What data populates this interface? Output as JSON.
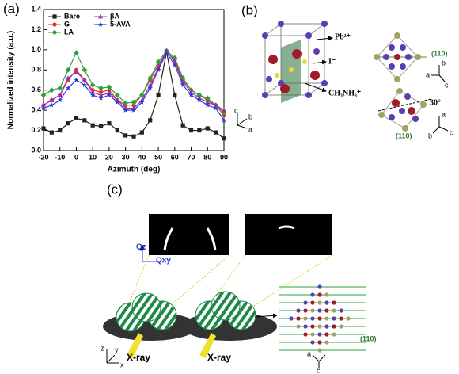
{
  "chart_data": {
    "type": "line",
    "panel_label": "(a)",
    "xlabel": "Azimuth (deg)",
    "ylabel": "Normalized intensity (a.u.)",
    "x": [
      -20,
      -15,
      -10,
      -5,
      0,
      5,
      10,
      15,
      20,
      25,
      30,
      35,
      40,
      45,
      50,
      55,
      60,
      65,
      70,
      75,
      80,
      85,
      90
    ],
    "xlim": [
      -20,
      90
    ],
    "xticks": [
      -20,
      -10,
      0,
      10,
      20,
      30,
      40,
      50,
      60,
      70,
      80,
      90
    ],
    "ylim": [
      0,
      1.4
    ],
    "yticks": [
      {
        "value": 0,
        "label": "0.0"
      },
      0.2,
      0.4,
      0.6,
      0.8,
      {
        "value": 1,
        "label": "1.0"
      },
      1.2,
      1.4
    ],
    "legend": "upper left",
    "series": [
      {
        "name": "Bare",
        "color": "#222222",
        "marker": "square",
        "values": [
          0.22,
          0.18,
          0.2,
          0.27,
          0.32,
          0.3,
          0.25,
          0.24,
          0.27,
          0.2,
          0.15,
          0.14,
          0.18,
          0.3,
          0.55,
          0.98,
          0.55,
          0.25,
          0.2,
          0.2,
          0.22,
          0.18,
          0.12
        ]
      },
      {
        "name": "G",
        "color": "#e8312f",
        "marker": "circle",
        "values": [
          0.45,
          0.5,
          0.55,
          0.7,
          0.8,
          0.7,
          0.6,
          0.58,
          0.6,
          0.5,
          0.45,
          0.45,
          0.55,
          0.7,
          0.85,
          0.98,
          0.9,
          0.7,
          0.6,
          0.55,
          0.5,
          0.45,
          0.35
        ]
      },
      {
        "name": "LA",
        "color": "#2aa33a",
        "marker": "diamond",
        "values": [
          0.55,
          0.6,
          0.62,
          0.8,
          0.97,
          0.8,
          0.65,
          0.62,
          0.63,
          0.55,
          0.47,
          0.48,
          0.55,
          0.72,
          0.88,
          0.99,
          0.92,
          0.72,
          0.6,
          0.55,
          0.52,
          0.45,
          0.38
        ]
      },
      {
        "name": "βA",
        "color": "#9b2fa8",
        "marker": "triangle",
        "values": [
          0.45,
          0.5,
          0.55,
          0.72,
          0.78,
          0.7,
          0.58,
          0.55,
          0.57,
          0.5,
          0.42,
          0.42,
          0.5,
          0.65,
          0.82,
          0.99,
          0.88,
          0.68,
          0.58,
          0.52,
          0.48,
          0.45,
          0.4
        ]
      },
      {
        "name": "5-AVA",
        "color": "#2a3bd6",
        "marker": "star",
        "values": [
          0.42,
          0.45,
          0.5,
          0.62,
          0.7,
          0.65,
          0.55,
          0.52,
          0.55,
          0.48,
          0.4,
          0.4,
          0.48,
          0.62,
          0.8,
          0.97,
          0.85,
          0.65,
          0.55,
          0.5,
          0.45,
          0.42,
          0.3
        ]
      }
    ]
  },
  "panel_b": {
    "label": "(b)",
    "ion_pb": "Pb²⁺",
    "ion_i": "I⁻",
    "ion_ma": "CH₃NH₃⁺",
    "plane_top": "(110)",
    "plane_bottom": "(110)",
    "angle": "30°",
    "axes_cube": [
      "c",
      "b",
      "a"
    ],
    "axes_top": [
      "b",
      "a",
      "c"
    ],
    "axes_bottom": [
      "a",
      "c",
      "b"
    ]
  },
  "panel_c": {
    "label": "(c)",
    "qz": "Qz",
    "qxy": "Qxy",
    "xray_left": "X-ray",
    "xray_right": "X-ray",
    "axes": [
      "z",
      "y",
      "x"
    ],
    "plane": "(110)",
    "lattice_axes": [
      "a",
      "c"
    ]
  }
}
